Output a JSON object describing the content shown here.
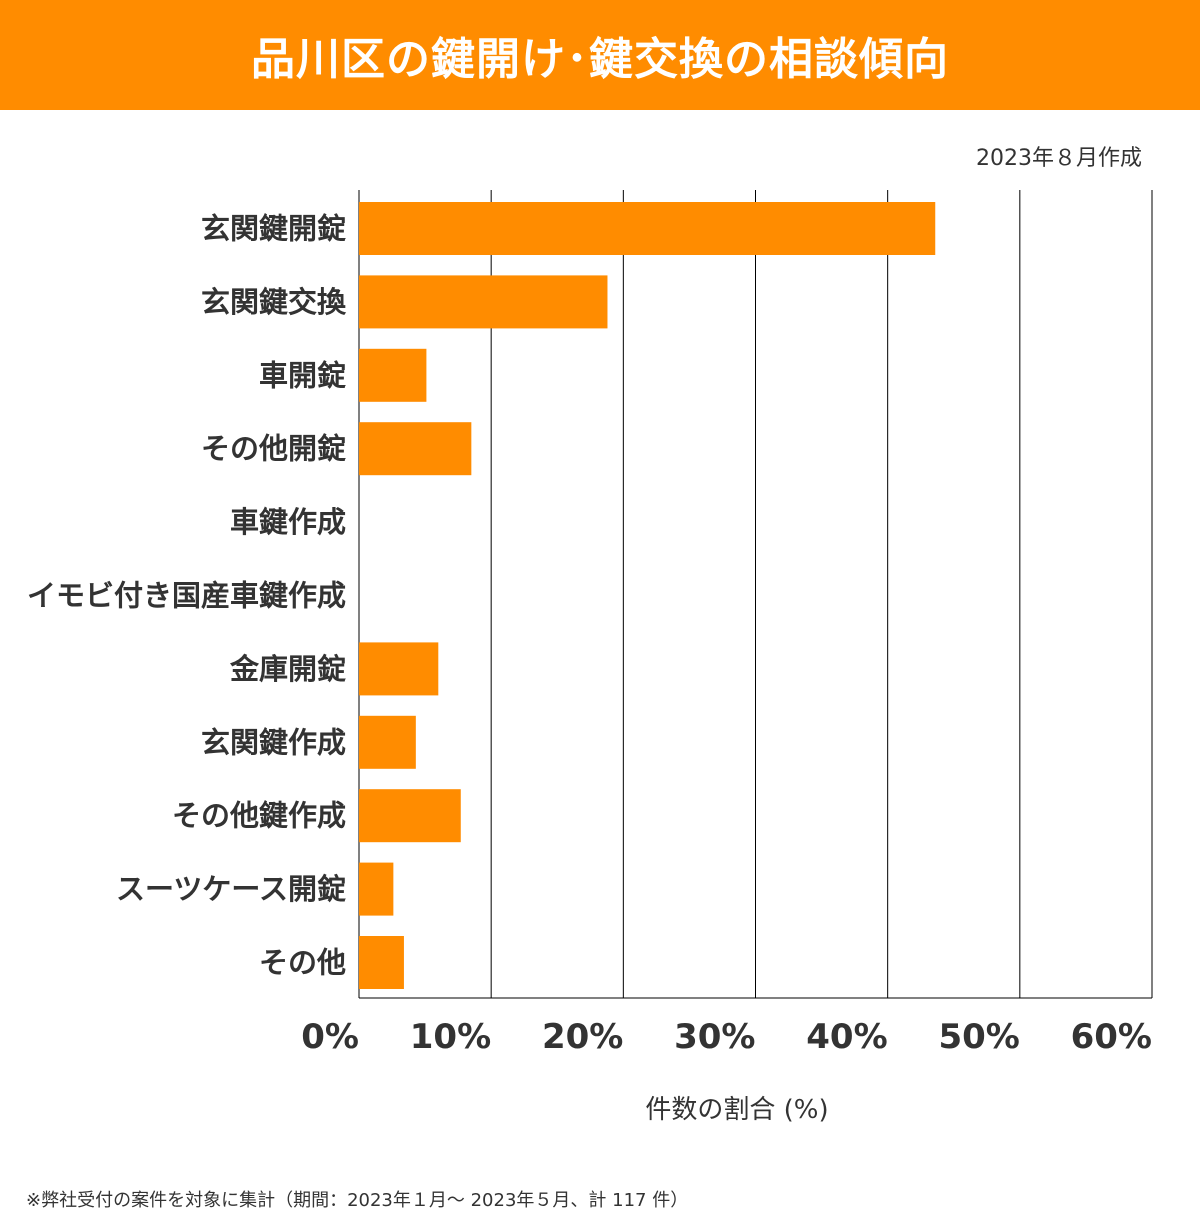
{
  "header": {
    "title": "品川区の鍵開け･鍵交換の相談傾向"
  },
  "created_note": "2023年８月作成",
  "footnote": "※弊社受付の案件を対象に集計（期間：2023年１月～ 2023年５月、計 117 件）",
  "colors": {
    "accent": "#ff8c00",
    "text": "#333333",
    "grid": "#000000"
  },
  "chart_data": {
    "type": "bar",
    "orientation": "horizontal",
    "title": "品川区の鍵開け･鍵交換の相談傾向",
    "xlabel": "件数の割合 (%)",
    "ylabel": "",
    "xlim": [
      0,
      60
    ],
    "xticks": [
      "0%",
      "10%",
      "20%",
      "30%",
      "40%",
      "50%",
      "60%"
    ],
    "grid": true,
    "categories": [
      "玄関鍵開錠",
      "玄関鍵交換",
      "車開錠",
      "その他開錠",
      "車鍵作成",
      "イモビ付き国産車鍵作成",
      "金庫開錠",
      "玄関鍵作成",
      "その他鍵作成",
      "スーツケース開錠",
      "その他"
    ],
    "values": [
      43.6,
      18.8,
      5.1,
      8.5,
      0,
      0,
      6.0,
      4.3,
      7.7,
      2.6,
      3.4
    ]
  }
}
